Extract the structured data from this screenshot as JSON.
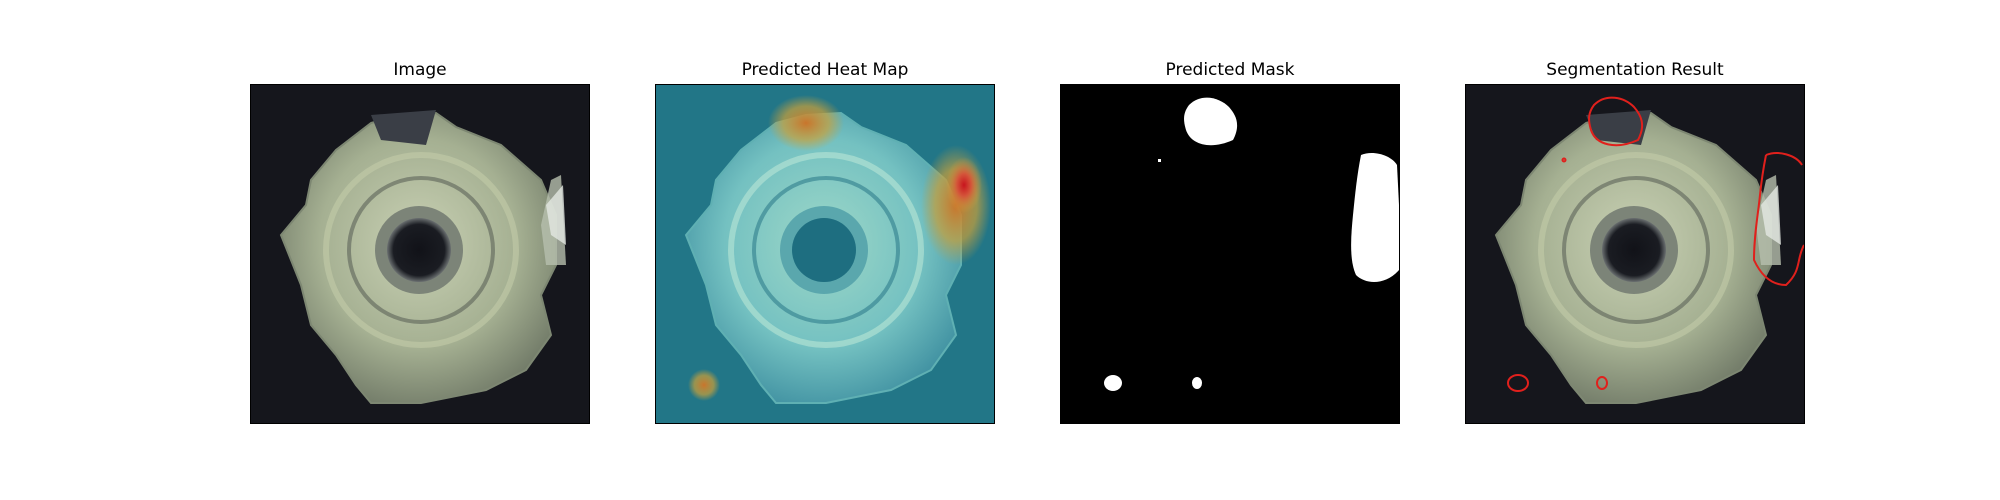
{
  "figure": {
    "panels": [
      {
        "title": "Image"
      },
      {
        "title": "Predicted Heat Map"
      },
      {
        "title": "Predicted Mask"
      },
      {
        "title": "Segmentation Result"
      }
    ]
  },
  "colors": {
    "background_dark": "#15161c",
    "metal": "#a9b59a",
    "metal_highlight": "#dfe6c8",
    "heatmap_base": "#1f6f86",
    "heatmap_hot": "#c8141e",
    "heatmap_warm": "#d4a43a",
    "mask_foreground": "#ffffff",
    "mask_background": "#000000",
    "contour": "#e0201c"
  }
}
